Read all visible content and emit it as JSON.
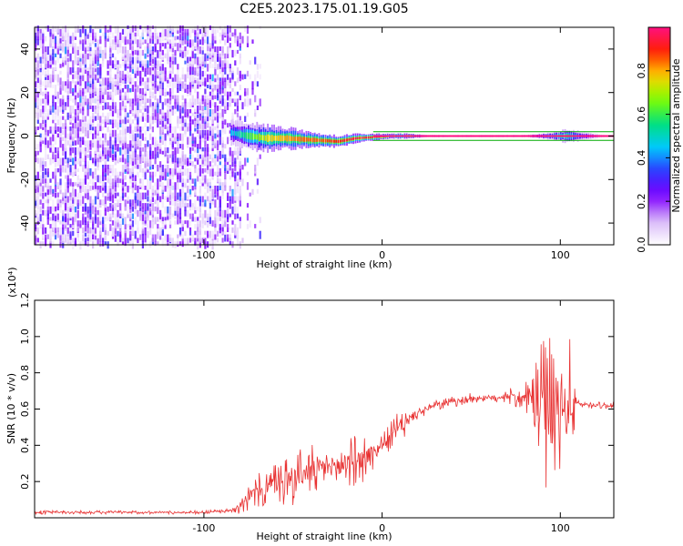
{
  "figure_title": "C2E5.2023.175.01.19.G05",
  "colors": {
    "snr_line": "#e83232",
    "reference_line": "#00aa00",
    "colormap": [
      "#ffffff",
      "#d8b8f8",
      "#8000ff",
      "#3030ff",
      "#00c8ff",
      "#00e080",
      "#80ff00",
      "#ffd000",
      "#ff2000",
      "#ff1080"
    ]
  },
  "chart_data": [
    {
      "type": "heatmap",
      "xlabel": "Height of straight line (km)",
      "ylabel": "Frequency (Hz)",
      "xlim": [
        -195,
        130
      ],
      "ylim": [
        -50,
        50
      ],
      "x_ticks": [
        -100,
        0,
        100
      ],
      "y_ticks": [
        -40,
        -20,
        0,
        20,
        40
      ],
      "colorbar": {
        "label": "Normalized spectral amplitude",
        "range": [
          0.0,
          1.0
        ],
        "ticks": [
          0.0,
          0.2,
          0.4,
          0.6,
          0.8
        ]
      },
      "noise_region": [
        -195,
        -80
      ],
      "signal_track": {
        "x": [
          -85,
          -75,
          -65,
          -55,
          -45,
          -35,
          -25,
          -15,
          -5,
          5,
          15,
          25,
          40,
          60,
          80,
          95,
          103,
          130
        ],
        "frequency": [
          1.5,
          0.0,
          -1.0,
          -1.0,
          -1.5,
          -2.0,
          -2.5,
          -1.0,
          -0.5,
          0.0,
          0.0,
          0.0,
          0.0,
          0.0,
          0.0,
          0.0,
          0.0,
          0.0
        ],
        "spread": [
          5.0,
          6.0,
          6.0,
          5.0,
          4.0,
          3.0,
          2.5,
          2.0,
          1.5,
          1.0,
          1.0,
          0.5,
          0.5,
          0.5,
          0.5,
          1.5,
          3.0,
          0.0
        ],
        "peak_amplitude": [
          0.45,
          0.6,
          0.75,
          0.8,
          0.85,
          0.85,
          0.9,
          0.95,
          0.95,
          1.0,
          1.0,
          0.5,
          0.3,
          0.3,
          0.45,
          0.6,
          0.6,
          0.0
        ]
      },
      "reference_band": [
        -2,
        2
      ]
    },
    {
      "type": "line",
      "xlabel": "Height of straight line (km)",
      "ylabel": "SNR (10 * v/v)",
      "y_multiplier": "(x10⁴)",
      "xlim": [
        -195,
        130
      ],
      "ylim": [
        0,
        1.2
      ],
      "x_ticks": [
        -100,
        0,
        100
      ],
      "y_ticks": [
        0.2,
        0.4,
        0.6,
        0.8,
        1.0,
        1.2
      ],
      "series": [
        {
          "x": [
            -195,
            -150,
            -100,
            -85,
            -80,
            -75,
            -70,
            -60,
            -50,
            -40,
            -30,
            -20,
            -10,
            -5,
            0,
            5,
            10,
            15,
            20,
            30,
            40,
            50,
            60,
            70,
            80,
            85,
            90,
            95,
            100,
            105,
            110,
            120,
            130
          ],
          "mean": [
            0.03,
            0.03,
            0.03,
            0.04,
            0.07,
            0.12,
            0.14,
            0.18,
            0.22,
            0.26,
            0.28,
            0.3,
            0.33,
            0.36,
            0.4,
            0.45,
            0.5,
            0.54,
            0.58,
            0.62,
            0.64,
            0.66,
            0.66,
            0.67,
            0.66,
            0.65,
            0.6,
            0.55,
            0.55,
            0.62,
            0.63,
            0.62,
            0.62
          ],
          "amplitude": [
            0.01,
            0.01,
            0.01,
            0.01,
            0.05,
            0.08,
            0.1,
            0.13,
            0.15,
            0.15,
            0.14,
            0.14,
            0.14,
            0.12,
            0.06,
            0.08,
            0.12,
            0.08,
            0.04,
            0.03,
            0.03,
            0.03,
            0.03,
            0.04,
            0.08,
            0.15,
            0.4,
            0.45,
            0.4,
            0.4,
            0.02,
            0.02,
            0.02
          ]
        }
      ]
    }
  ]
}
